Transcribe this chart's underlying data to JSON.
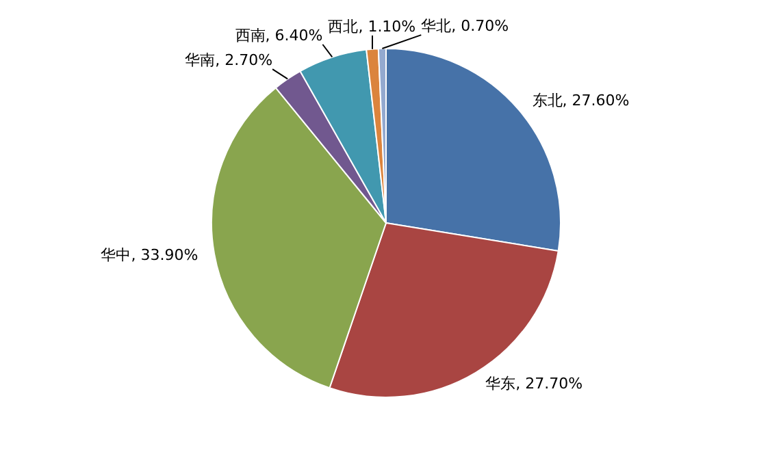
{
  "chart_data": {
    "type": "pie",
    "categories": [
      "东北",
      "华东",
      "华中",
      "华南",
      "西南",
      "西北",
      "华北"
    ],
    "values": [
      27.6,
      27.7,
      33.9,
      2.7,
      6.4,
      1.1,
      0.7
    ],
    "value_labels": [
      "27.60%",
      "27.70%",
      "33.90%",
      "2.70%",
      "6.40%",
      "1.10%",
      "0.70%"
    ],
    "colors": [
      "#4672a8",
      "#a94542",
      "#89a54e",
      "#71588f",
      "#4198af",
      "#db843d",
      "#93a9cf"
    ],
    "legend": false
  }
}
